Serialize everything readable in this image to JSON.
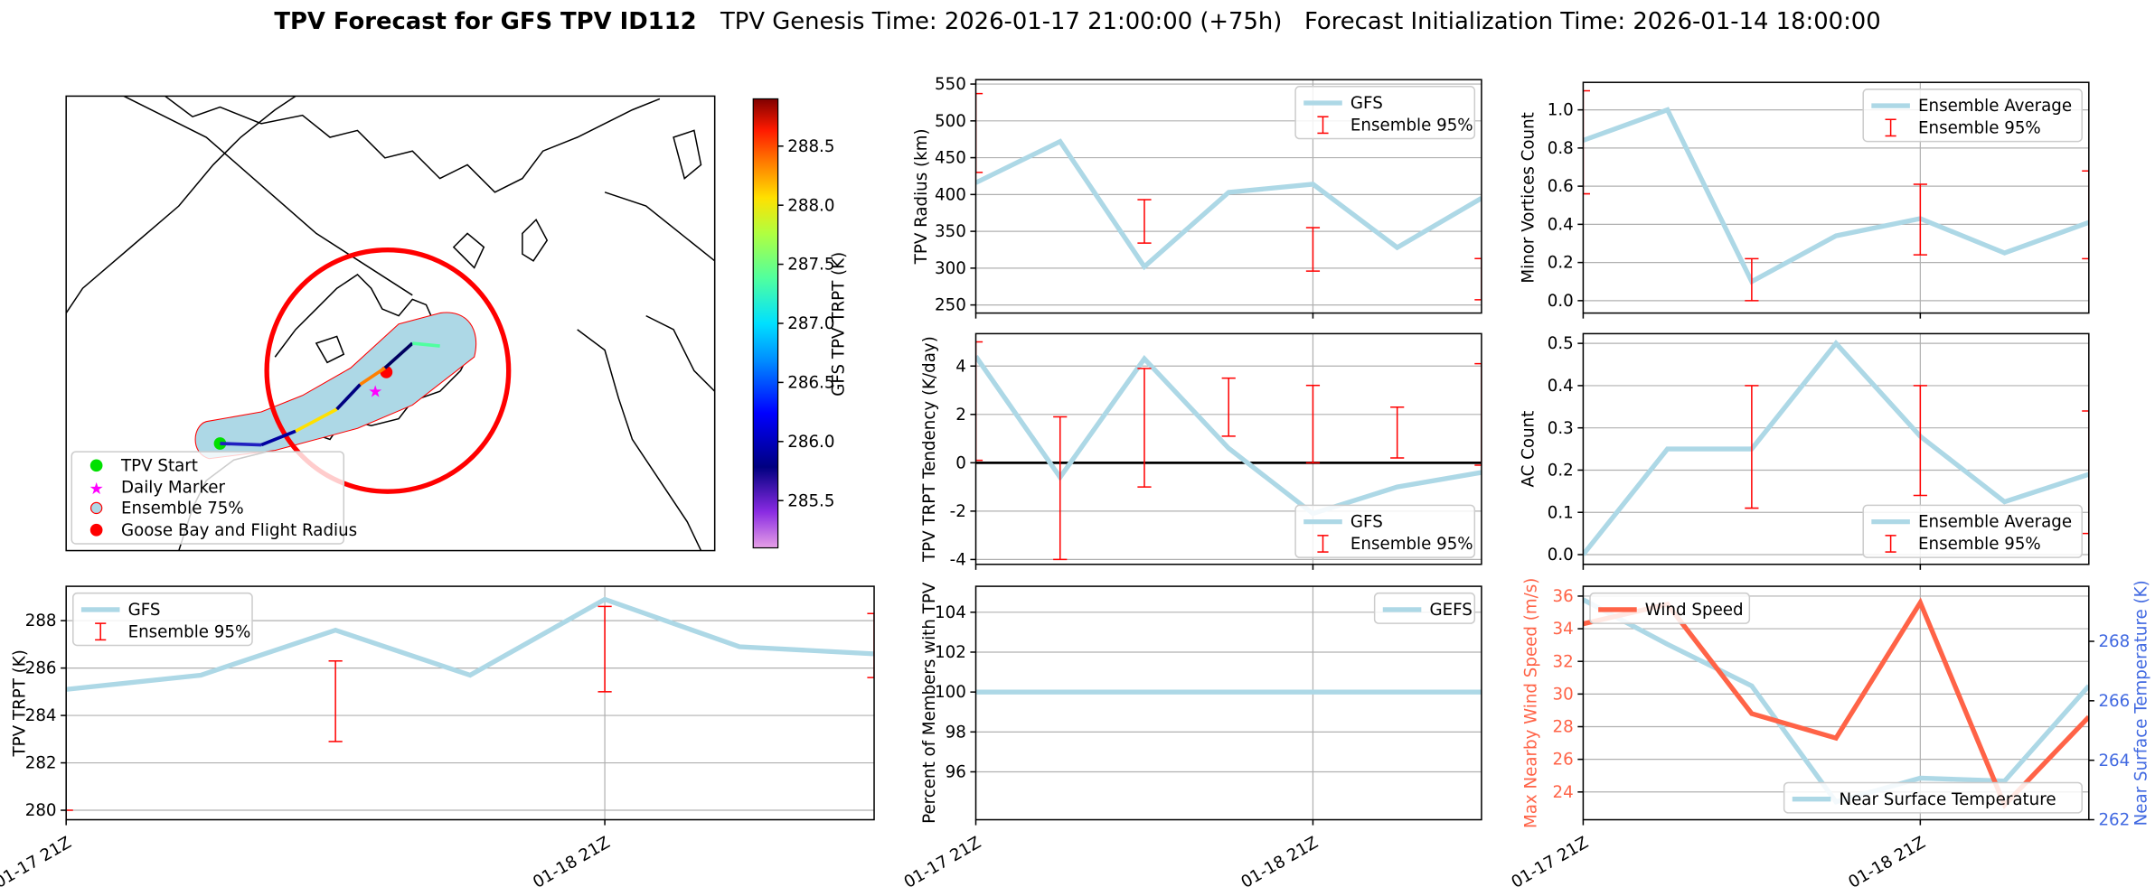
{
  "header": {
    "title_bold": "TPV Forecast for GFS TPV ID112",
    "title_rest": "TPV Genesis Time: 2026-01-17 21:00:00 (+75h)   Forecast Initialization Time: 2026-01-14 18:00:00"
  },
  "map": {
    "legend": [
      "TPV Start",
      "Daily Marker",
      "Ensemble 75%",
      "Goose Bay and Flight Radius"
    ],
    "colorbar_label": "GFS TPV TRPT (K)",
    "colorbar_ticks": [
      285.5,
      286.0,
      286.5,
      287.0,
      287.5,
      288.0,
      288.5
    ],
    "colorbar_range": [
      285.1,
      288.9
    ],
    "track_trpt": [
      285.1,
      285.7,
      287.6,
      285.7,
      288.9,
      286.9,
      286.6
    ]
  },
  "chart_data": {
    "type": "line",
    "x_hours": [
      0,
      6,
      12,
      18,
      24,
      30,
      36
    ],
    "x_tick_hours": [
      0,
      24
    ],
    "x_tick_labels": [
      "01-17 21Z",
      "01-18 21Z"
    ],
    "colors": {
      "gfs": "#add8e6",
      "err": "#ff0000",
      "wind": "#ff6347",
      "temp": "#4169e1"
    },
    "panels": [
      {
        "id": "radius",
        "ylabel": "TPV Radius (km)",
        "ylim": [
          239,
          556
        ],
        "yticks": [
          250,
          300,
          350,
          400,
          450,
          500,
          550
        ],
        "series": {
          "name": "GFS",
          "values": [
            416,
            472,
            302,
            403,
            414,
            328,
            395
          ]
        },
        "err_label": "Ensemble 95%",
        "errors": [
          [
            430,
            537
          ],
          null,
          [
            334,
            393
          ],
          null,
          [
            296,
            355
          ],
          null,
          [
            257,
            313
          ]
        ],
        "legend": "upper right"
      },
      {
        "id": "minor",
        "ylabel": "Minor Vortices Count",
        "ylim": [
          -0.065,
          1.144
        ],
        "yticks": [
          0.0,
          0.2,
          0.4,
          0.6,
          0.8,
          1.0
        ],
        "series": {
          "name": "Ensemble Average",
          "values": [
            0.84,
            1.0,
            0.1,
            0.34,
            0.43,
            0.25,
            0.41
          ]
        },
        "err_label": "Ensemble 95%",
        "errors": [
          [
            0.56,
            1.1
          ],
          null,
          [
            0.0,
            0.22
          ],
          null,
          [
            0.24,
            0.61
          ],
          null,
          [
            0.22,
            0.68
          ]
        ],
        "legend": "upper right"
      },
      {
        "id": "tendency",
        "ylabel": "TPV TRPT Tendency (K/day)",
        "ylim": [
          -4.2,
          5.34
        ],
        "yticks": [
          -4,
          -2,
          0,
          2,
          4
        ],
        "zero_line": true,
        "series": {
          "name": "GFS",
          "values": [
            4.4,
            -0.6,
            4.3,
            0.6,
            -2.1,
            -1.0,
            -0.4
          ]
        },
        "err_label": "Ensemble 95%",
        "errors": [
          [
            0.1,
            5.0
          ],
          [
            -4.0,
            1.9
          ],
          [
            -1.0,
            3.9
          ],
          [
            1.1,
            3.5
          ],
          [
            0.0,
            3.2
          ],
          [
            0.2,
            2.3
          ],
          [
            -0.1,
            4.1
          ]
        ],
        "legend": "lower right"
      },
      {
        "id": "ac",
        "ylabel": "AC Count",
        "ylim": [
          -0.023,
          0.523
        ],
        "yticks": [
          0.0,
          0.1,
          0.2,
          0.3,
          0.4,
          0.5
        ],
        "series": {
          "name": "Ensemble Average",
          "values": [
            0.0,
            0.25,
            0.25,
            0.5,
            0.28,
            0.125,
            0.19
          ]
        },
        "err_label": "Ensemble 95%",
        "errors": [
          null,
          null,
          [
            0.11,
            0.4
          ],
          null,
          [
            0.14,
            0.4
          ],
          null,
          [
            0.05,
            0.34
          ]
        ],
        "legend": "lower right"
      },
      {
        "id": "trpt",
        "ylabel": "TPV TRPT (K)",
        "ylim": [
          279.6,
          289.45
        ],
        "yticks": [
          280,
          282,
          284,
          286,
          288
        ],
        "series": {
          "name": "GFS",
          "values": [
            285.1,
            285.7,
            287.6,
            285.7,
            288.9,
            286.9,
            286.6
          ]
        },
        "err_label": "Ensemble 95%",
        "errors": [
          [
            279.0,
            280.0
          ],
          null,
          [
            282.9,
            286.3
          ],
          null,
          [
            285.0,
            288.6
          ],
          null,
          [
            285.6,
            288.3
          ]
        ],
        "legend": "upper left"
      },
      {
        "id": "percent",
        "ylabel": "Percent of Members with TPV",
        "ylim": [
          93.6,
          105.3
        ],
        "yticks": [
          96,
          98,
          100,
          102,
          104
        ],
        "series": {
          "name": "GEFS",
          "values": [
            100,
            100,
            100,
            100,
            100,
            100,
            100
          ]
        },
        "legend": "upper right"
      },
      {
        "id": "wind",
        "ylabel": "Max Nearby Wind Speed (m/s)",
        "ylim": [
          22.3,
          36.6
        ],
        "yticks": [
          24,
          26,
          28,
          30,
          32,
          34,
          36
        ],
        "series": {
          "name": "Wind Speed",
          "values": [
            34.3,
            35.5,
            28.8,
            27.3,
            35.6,
            23.2,
            28.6
          ]
        },
        "ylabel2": "Near Surface Temperature (K)",
        "ylim2": [
          262,
          269.85
        ],
        "yticks2": [
          262,
          264,
          266,
          268
        ],
        "series2": {
          "name": "Near Surface Temperature",
          "values": [
            269.4,
            267.9,
            266.5,
            262.6,
            263.4,
            263.3,
            266.5
          ]
        },
        "legend": "upper left",
        "legend2": "lower right"
      }
    ]
  }
}
